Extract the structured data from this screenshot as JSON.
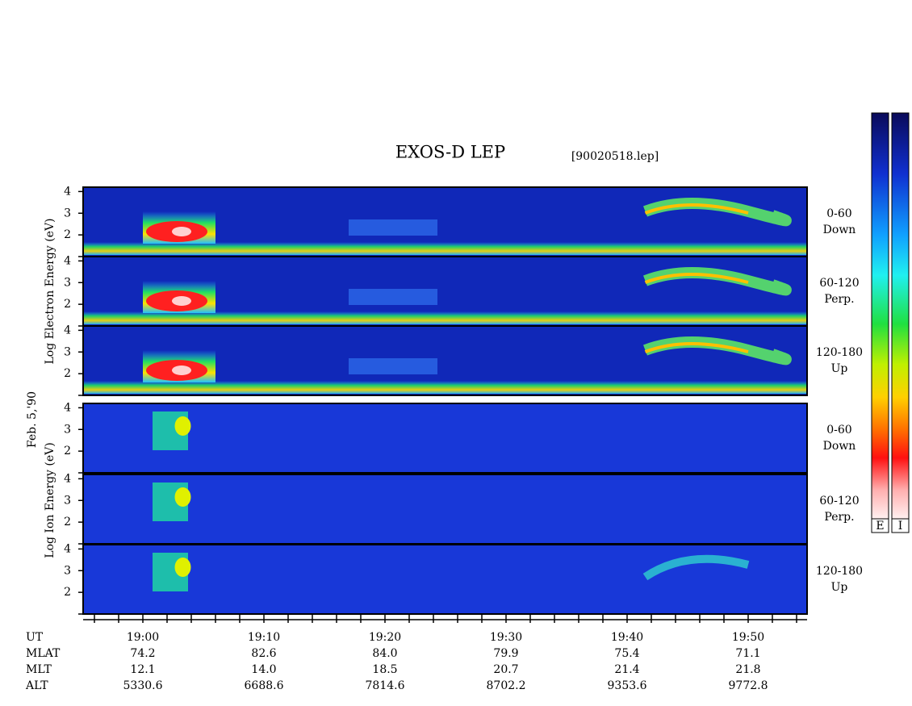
{
  "title": "EXOS-D LEP",
  "file": "[90020518.lep]",
  "date": "Feb. 5,'90",
  "electron_label": "Log Electron Energy (eV)",
  "ion_label": "Log Ion Energy (eV)",
  "energy_axis": {
    "ylim": [
      1,
      4.2
    ],
    "yticks": [
      2,
      3,
      4
    ]
  },
  "panels": [
    {
      "angle": "0-60",
      "direction": "Down"
    },
    {
      "angle": "60-120",
      "direction": "Perp."
    },
    {
      "angle": "120-180",
      "direction": "Up"
    }
  ],
  "colorbars": [
    "E",
    "I"
  ],
  "time_axis": {
    "name": "UT",
    "ticks": [
      "19:00",
      "19:10",
      "19:20",
      "19:30",
      "19:40",
      "19:50"
    ]
  },
  "ephemeris": [
    {
      "name": "MLAT",
      "values": [
        "74.2",
        "82.6",
        "84.0",
        "79.9",
        "75.4",
        "71.1"
      ]
    },
    {
      "name": "MLT",
      "values": [
        "12.1",
        "14.0",
        "18.5",
        "20.7",
        "21.4",
        "21.8"
      ]
    },
    {
      "name": "ALT",
      "values": [
        "5330.6",
        "6688.6",
        "7814.6",
        "8702.2",
        "9353.6",
        "9772.8"
      ]
    }
  ]
}
